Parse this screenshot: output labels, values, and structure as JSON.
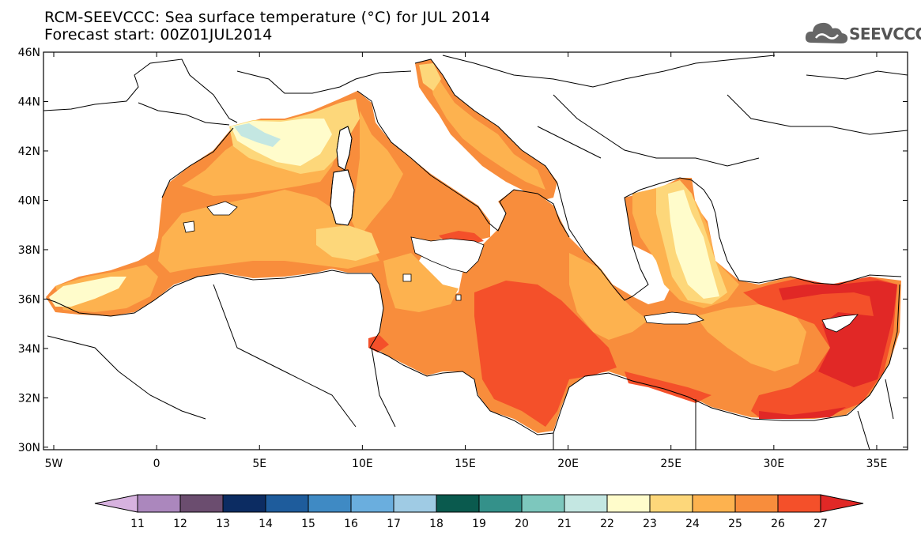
{
  "title": {
    "line1": "RCM-SEEVCCC: Sea surface temperature (°C) for JUL 2014",
    "line2": "Forecast start: 00Z01JUL2014"
  },
  "logo": {
    "text": "SEEVCCC",
    "icon": "cloud-icon"
  },
  "map": {
    "lon_range": [
      -5.5,
      36.5
    ],
    "lat_range": [
      29.9,
      46
    ],
    "lat_labels": [
      "30N",
      "32N",
      "34N",
      "36N",
      "38N",
      "40N",
      "42N",
      "44N",
      "46N"
    ],
    "lat_values": [
      30,
      32,
      34,
      36,
      38,
      40,
      42,
      44,
      46
    ],
    "lon_labels": [
      "5W",
      "0",
      "5E",
      "10E",
      "15E",
      "20E",
      "25E",
      "30E",
      "35E"
    ],
    "lon_values": [
      -5,
      0,
      5,
      10,
      15,
      20,
      25,
      30,
      35
    ]
  },
  "colorbar": {
    "labels": [
      "11",
      "12",
      "13",
      "14",
      "15",
      "16",
      "17",
      "18",
      "19",
      "20",
      "21",
      "22",
      "23",
      "24",
      "25",
      "26",
      "27"
    ],
    "colors": [
      "#d7b2df",
      "#ab87bd",
      "#6b4d6f",
      "#0c2c62",
      "#1e5c9c",
      "#3f8ac4",
      "#6aaede",
      "#9fcbe4",
      "#0a5a4e",
      "#34918a",
      "#7dc7bd",
      "#c4e7e2",
      "#fffccb",
      "#fdd77a",
      "#fdb24f",
      "#f88d3c",
      "#f4502a",
      "#e12826"
    ]
  },
  "regions": [
    {
      "name": "open-sea-basins",
      "color": "#f88d3c"
    },
    {
      "name": "levantine-warm-core",
      "color": "#e12826"
    },
    {
      "name": "ionian-libyan-warm",
      "color": "#f4502a"
    },
    {
      "name": "tyrrhenian-warm-spot",
      "color": "#f4502a"
    },
    {
      "name": "western-med-moderate",
      "color": "#fdb24f"
    },
    {
      "name": "gulf-of-lion-cool",
      "color": "#fffccb"
    },
    {
      "name": "ligurian-cool",
      "color": "#fdd77a"
    },
    {
      "name": "gulf-of-lion-coldest",
      "color": "#c4e7e2"
    },
    {
      "name": "alboran-cool",
      "color": "#fffccb"
    },
    {
      "name": "aegean-cool",
      "color": "#fffccb"
    },
    {
      "name": "adriatic-north-moderate",
      "color": "#fdb24f"
    }
  ]
}
